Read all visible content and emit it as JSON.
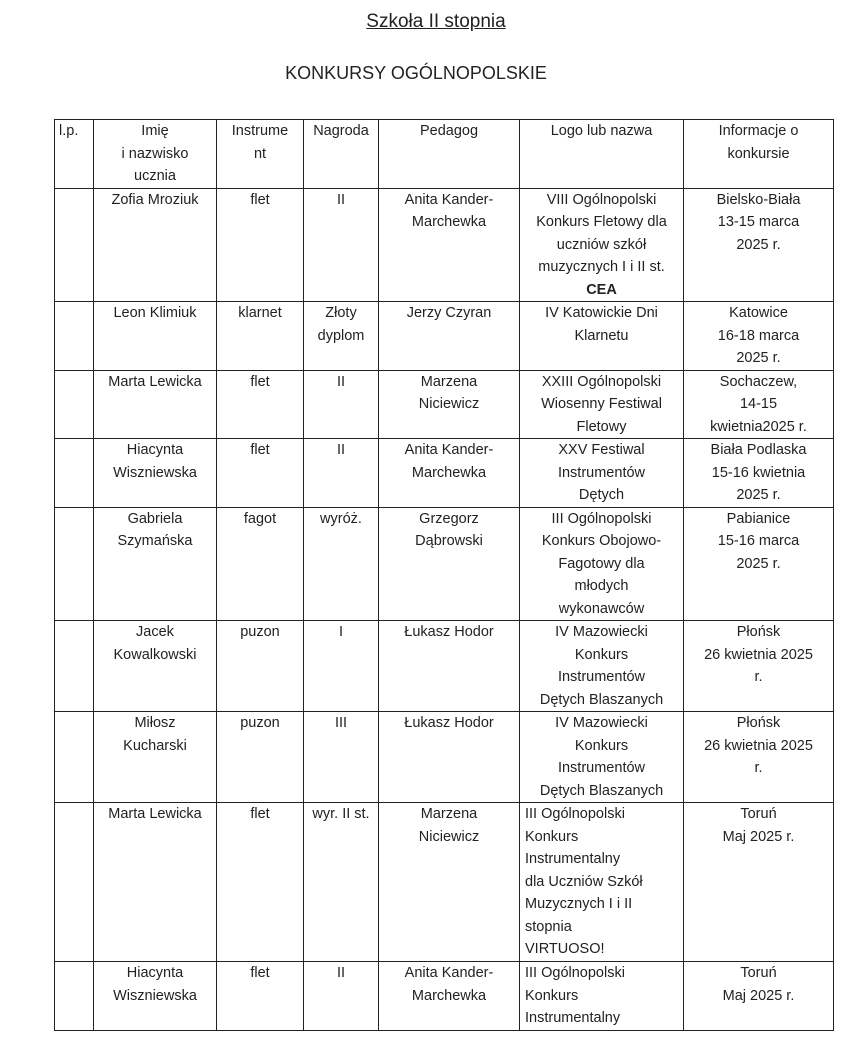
{
  "title": "Szkoła II stopnia",
  "subtitle": "KONKURSY OGÓLNOPOLSKIE",
  "headers": [
    "l.p.",
    "Imię\ni nazwisko\nucznia",
    "Instrume\nnt",
    "Nagroda",
    "Pedagog",
    "Logo lub nazwa",
    "Informacje o\nkonkursie"
  ],
  "rows": [
    {
      "lp": "",
      "name": "Zofia Mroziuk",
      "instrument": "flet",
      "award": "II",
      "teacher": "Anita Kander-\nMarchewka",
      "logo": "VIII Ogólnopolski\nKonkurs Fletowy dla\nuczniów szkół\nmuzycznych I i II st.",
      "logo_bold": "CEA",
      "info": "Bielsko-Biała\n13-15 marca\n2025 r."
    },
    {
      "lp": "",
      "name": "Leon Klimiuk",
      "instrument": "klarnet",
      "award": "Złoty\ndyplom",
      "teacher": "Jerzy Czyran",
      "logo": "IV Katowickie Dni\nKlarnetu",
      "info": "Katowice\n16-18 marca\n2025 r."
    },
    {
      "lp": "",
      "name": "Marta Lewicka",
      "instrument": "flet",
      "award": "II",
      "teacher": "Marzena\nNiciewicz",
      "logo": "XXIII Ogólnopolski\nWiosenny Festiwal\nFletowy",
      "info": "Sochaczew,\n14-15\nkwietnia2025 r."
    },
    {
      "lp": "",
      "name": "Hiacynta\nWiszniewska",
      "instrument": "flet",
      "award": "II",
      "teacher": "Anita Kander-\nMarchewka",
      "logo": "XXV Festiwal\nInstrumentów\nDętych",
      "info": "Biała Podlaska\n15-16 kwietnia\n2025 r."
    },
    {
      "lp": "",
      "name": "Gabriela\nSzymańska",
      "instrument": "fagot",
      "award": "wyróż.",
      "teacher": "Grzegorz\nDąbrowski",
      "logo": "III Ogólnopolski\nKonkurs Obojowo-\nFagotowy dla\nmłodych\nwykonawców",
      "info": "Pabianice\n15-16 marca\n2025 r."
    },
    {
      "lp": "",
      "name": "Jacek\nKowalkowski",
      "instrument": "puzon",
      "award": "I",
      "teacher": "Łukasz Hodor",
      "logo": "IV Mazowiecki\nKonkurs\nInstrumentów\nDętych Blaszanych",
      "info": "Płońsk\n26 kwietnia 2025\nr."
    },
    {
      "lp": "",
      "name": "Miłosz\nKucharski",
      "instrument": "puzon",
      "award": "III",
      "teacher": "Łukasz Hodor",
      "logo": "IV Mazowiecki\nKonkurs\nInstrumentów\nDętych Blaszanych",
      "info": "Płońsk\n26 kwietnia 2025\nr."
    },
    {
      "lp": "",
      "name": "Marta Lewicka",
      "instrument": "flet",
      "award": "wyr. II st.",
      "teacher": "Marzena\nNiciewicz",
      "logo": "III Ogólnopolski\nKonkurs\nInstrumentalny\ndla Uczniów Szkół\nMuzycznych I i II\nstopnia\nVIRTUOSO!",
      "logo_left": true,
      "info": "Toruń\nMaj 2025 r."
    },
    {
      "lp": "",
      "name": "Hiacynta\nWiszniewska",
      "instrument": "flet",
      "award": "II",
      "teacher": "Anita Kander-\nMarchewka",
      "logo": "III Ogólnopolski\nKonkurs\nInstrumentalny",
      "logo_left": true,
      "info": "Toruń\nMaj 2025 r."
    }
  ]
}
